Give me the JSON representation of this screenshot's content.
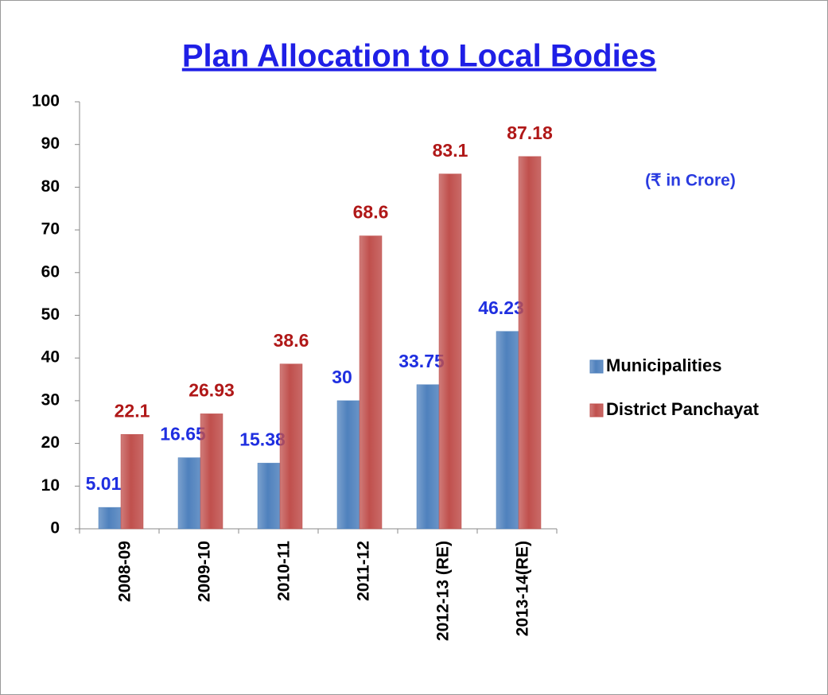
{
  "chart_data": {
    "type": "bar",
    "title": "Plan Allocation to Local Bodies",
    "annotation": "(₹ in Crore)",
    "categories": [
      "2008-09",
      "2009-10",
      "2010-11",
      "2011-12",
      "2012-13 (RE)",
      "2013-14(RE)"
    ],
    "series": [
      {
        "name": "Municipalities",
        "color": "#4f81bd",
        "values": [
          5.01,
          16.65,
          15.38,
          30,
          33.75,
          46.23
        ]
      },
      {
        "name": "District Panchayat",
        "color": "#c0504d",
        "values": [
          22.1,
          26.93,
          38.6,
          68.6,
          83.1,
          87.18
        ]
      }
    ],
    "ylim": [
      0,
      100
    ],
    "yticks": [
      0,
      10,
      20,
      30,
      40,
      50,
      60,
      70,
      80,
      90,
      100
    ],
    "grid": false,
    "legend": "right"
  }
}
